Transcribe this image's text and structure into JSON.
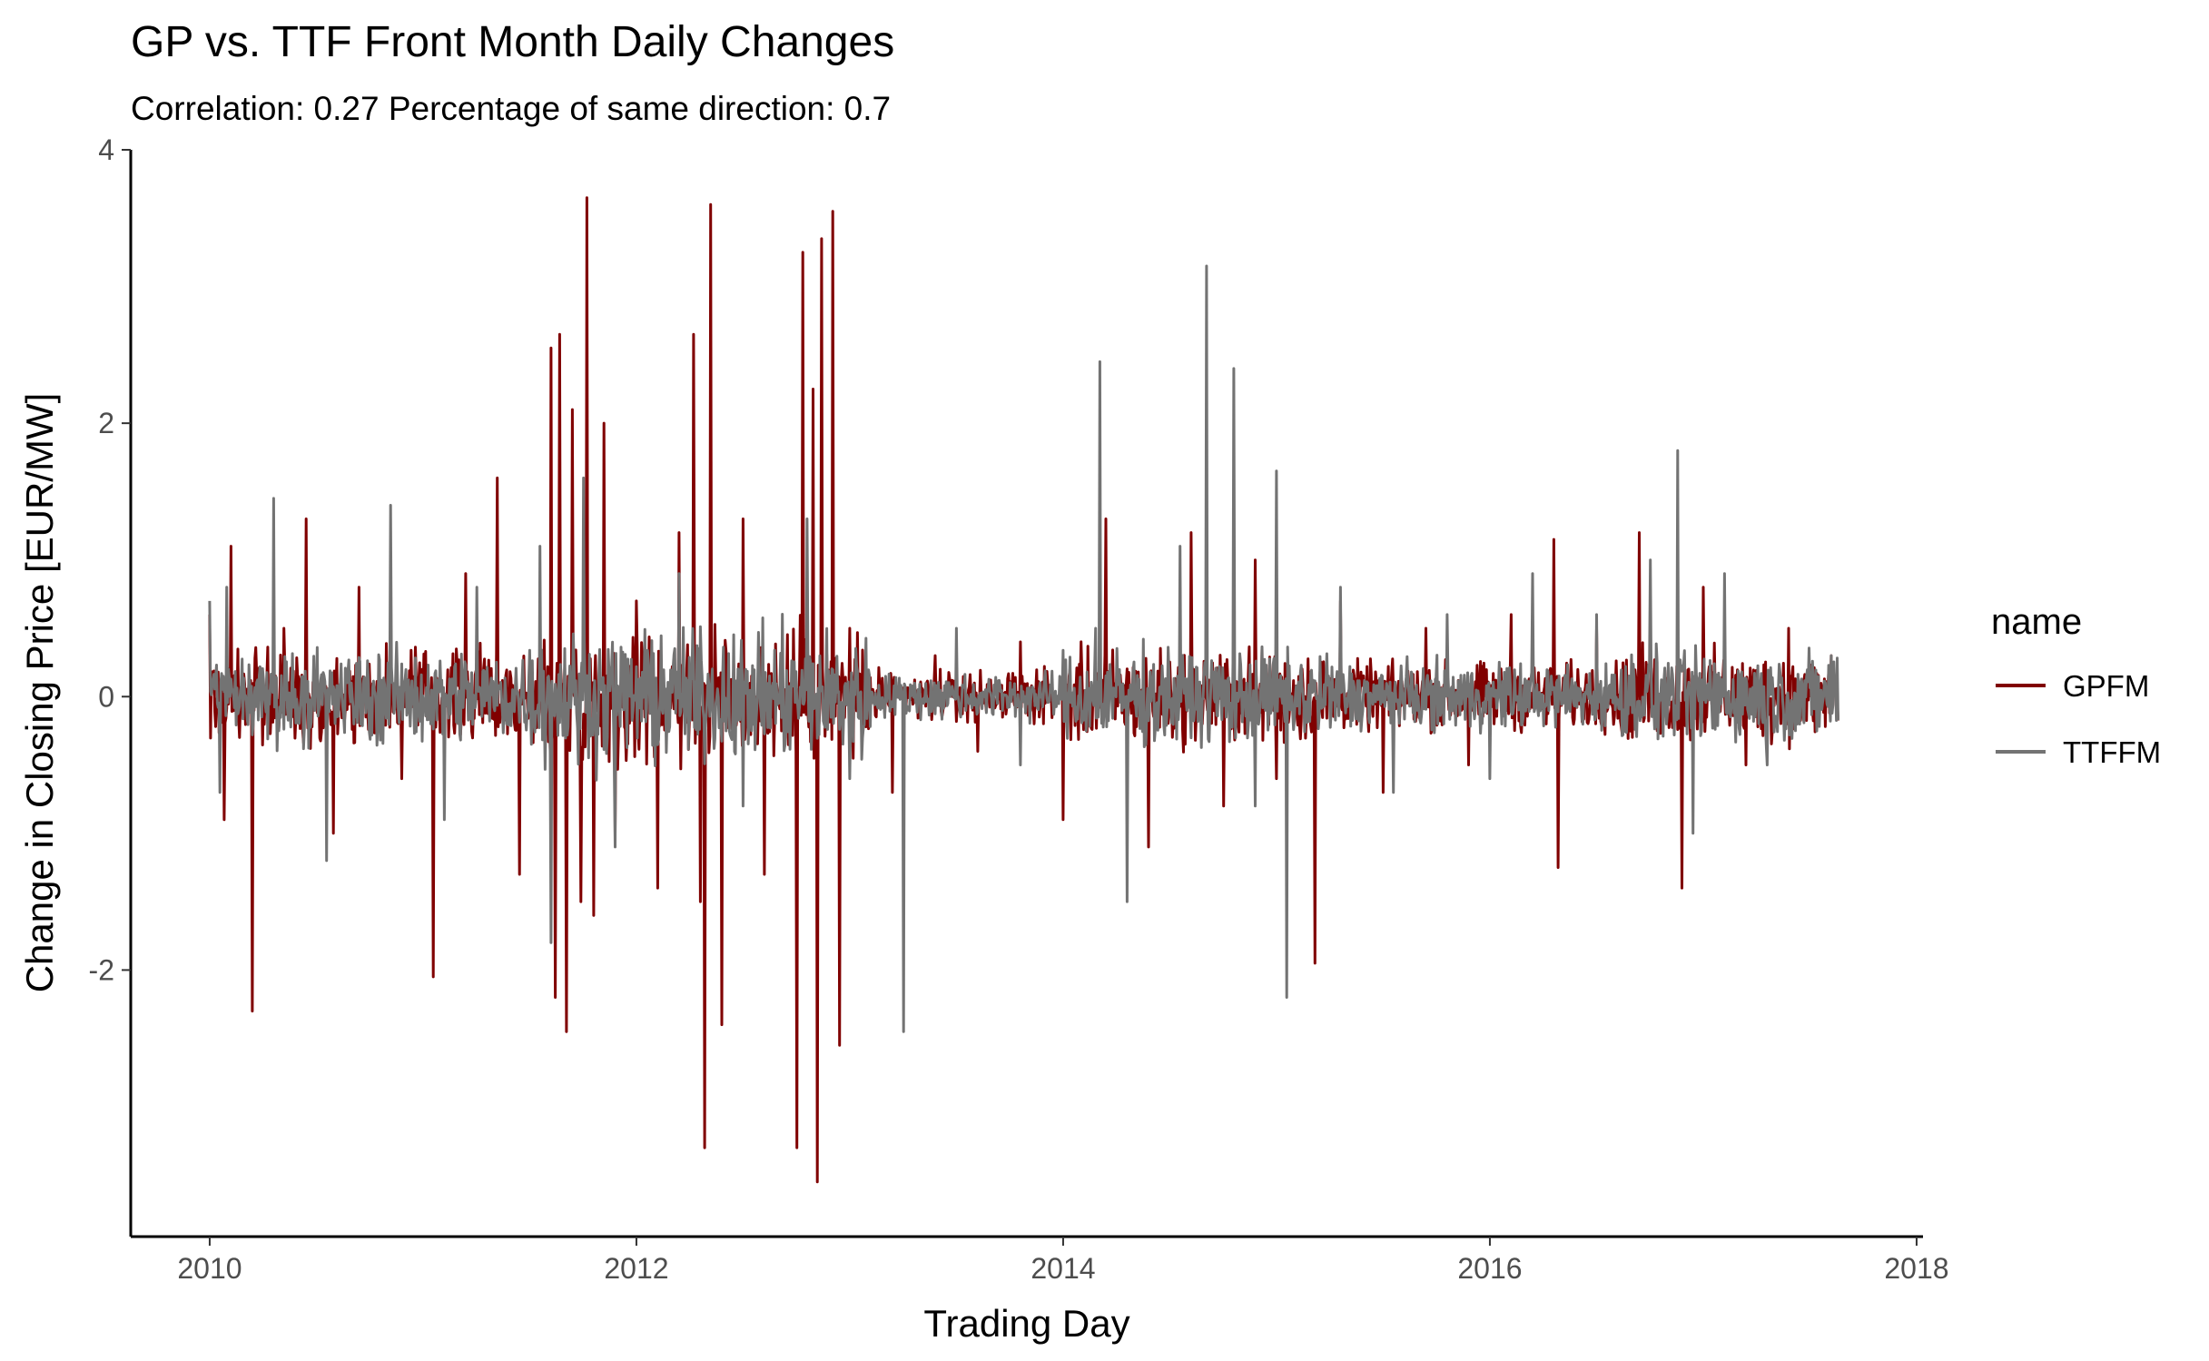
{
  "chart_data": {
    "type": "line",
    "title": "GP vs. TTF Front Month Daily Changes",
    "subtitle": "Correlation: 0.27 Percentage of same direction: 0.7",
    "xlabel": "Trading Day",
    "ylabel": "Change in Closing Price [EUR/MW]",
    "xlim": [
      2009.63,
      2018.03
    ],
    "ylim": [
      -3.95,
      4.0
    ],
    "x_ticks": [
      "2010",
      "2012",
      "2014",
      "2016",
      "2018"
    ],
    "x_tick_values": [
      2010,
      2012,
      2014,
      2016,
      2018
    ],
    "y_ticks": [
      "-2",
      "0",
      "2",
      "4"
    ],
    "y_tick_values": [
      -2,
      0,
      2,
      4
    ],
    "grid": false,
    "legend": {
      "title": "name",
      "position": "right"
    },
    "series": [
      {
        "name": "GPFM",
        "color": "#800000",
        "x": [
          2010.0,
          2010.07,
          2010.1,
          2010.2,
          2010.35,
          2010.45,
          2010.58,
          2010.7,
          2010.9,
          2011.05,
          2011.2,
          2011.35,
          2011.45,
          2011.6,
          2011.62,
          2011.64,
          2011.67,
          2011.7,
          2011.74,
          2011.77,
          2011.8,
          2011.85,
          2011.9,
          2012.0,
          2012.1,
          2012.2,
          2012.27,
          2012.3,
          2012.32,
          2012.35,
          2012.4,
          2012.5,
          2012.6,
          2012.75,
          2012.78,
          2012.83,
          2012.85,
          2012.87,
          2012.92,
          2012.95,
          2013.0,
          2013.2,
          2013.4,
          2013.6,
          2013.8,
          2014.0,
          2014.2,
          2014.4,
          2014.6,
          2014.75,
          2014.9,
          2015.0,
          2015.18,
          2015.3,
          2015.5,
          2015.7,
          2015.9,
          2016.1,
          2016.3,
          2016.32,
          2016.5,
          2016.7,
          2016.9,
          2017.0,
          2017.2,
          2017.4,
          2017.6
        ],
        "values": [
          0.6,
          -0.9,
          1.1,
          -2.3,
          0.5,
          1.3,
          -1.0,
          0.8,
          -0.6,
          -2.05,
          0.9,
          1.6,
          -1.3,
          2.55,
          -2.2,
          2.65,
          -2.45,
          2.1,
          -1.5,
          3.65,
          -1.6,
          2.0,
          -1.0,
          0.7,
          -1.4,
          1.2,
          2.65,
          -1.5,
          -3.3,
          3.6,
          -2.4,
          1.3,
          -1.3,
          -3.3,
          3.25,
          2.25,
          -3.55,
          3.35,
          3.55,
          -2.55,
          0.5,
          -0.7,
          0.3,
          -0.4,
          0.4,
          -0.9,
          1.3,
          -1.1,
          1.2,
          -0.8,
          1.0,
          -0.6,
          -1.95,
          0.7,
          -0.7,
          0.5,
          -0.5,
          0.6,
          1.15,
          -1.25,
          0.5,
          1.2,
          -1.4,
          0.8,
          -0.5,
          0.5,
          0.3
        ]
      },
      {
        "name": "TTFFM",
        "color": "#737373",
        "x": [
          2010.0,
          2010.05,
          2010.08,
          2010.3,
          2010.55,
          2010.85,
          2011.1,
          2011.25,
          2011.55,
          2011.6,
          2011.75,
          2011.9,
          2012.2,
          2012.5,
          2012.8,
          2013.0,
          2013.25,
          2013.5,
          2013.8,
          2014.15,
          2014.17,
          2014.3,
          2014.55,
          2014.67,
          2014.8,
          2014.9,
          2015.0,
          2015.05,
          2015.3,
          2015.55,
          2015.8,
          2016.0,
          2016.2,
          2016.5,
          2016.75,
          2016.88,
          2016.95,
          2017.1,
          2017.3,
          2017.6
        ],
        "values": [
          0.7,
          -0.7,
          0.8,
          1.45,
          -1.2,
          1.4,
          -0.9,
          0.8,
          1.1,
          -1.8,
          1.6,
          -1.1,
          0.9,
          -0.8,
          1.3,
          -0.6,
          -2.45,
          0.5,
          -0.5,
          0.5,
          2.45,
          -1.5,
          1.1,
          3.15,
          2.4,
          -0.8,
          1.65,
          -2.2,
          0.8,
          -0.7,
          0.6,
          -0.6,
          0.9,
          0.6,
          1.0,
          1.8,
          -1.0,
          0.9,
          -0.5,
          0.3
        ]
      }
    ]
  }
}
